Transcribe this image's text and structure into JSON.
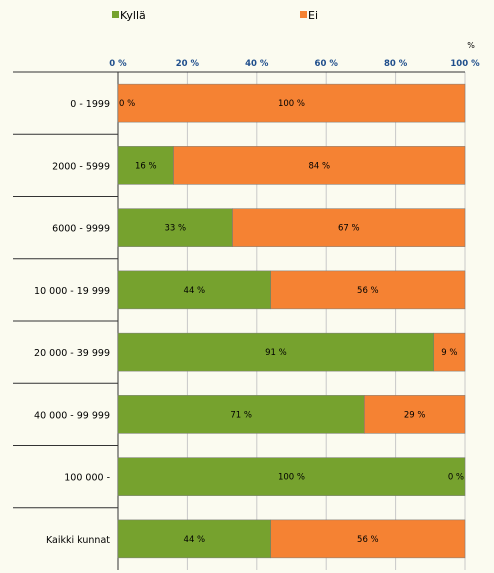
{
  "chart_data": {
    "type": "bar",
    "orientation": "horizontal",
    "stacked": true,
    "title": "",
    "xlabel": "",
    "ylabel": "",
    "unit_label": "%",
    "xlim": [
      0,
      100
    ],
    "x_ticks": [
      0,
      20,
      40,
      60,
      80,
      100
    ],
    "x_tick_labels": [
      "0 %",
      "20 %",
      "40 %",
      "60 %",
      "80 %",
      "100 %"
    ],
    "grid": true,
    "legend_position": "top",
    "categories": [
      "0 - 1999",
      "2000 - 5999",
      "6000 - 9999",
      "10 000 - 19 999",
      "20 000 - 39 999",
      "40 000 - 99 999",
      "100 000 -",
      "Kaikki kunnat"
    ],
    "series": [
      {
        "name": "Kyllä",
        "color": "#76a22e",
        "values": [
          0,
          16,
          33,
          44,
          91,
          71,
          100,
          44
        ],
        "labels": [
          "0 %",
          "16 %",
          "33 %",
          "44 %",
          "91 %",
          "71 %",
          "100 %",
          "44 %"
        ]
      },
      {
        "name": "Ei",
        "color": "#f58233",
        "values": [
          100,
          84,
          67,
          56,
          9,
          29,
          0,
          56
        ],
        "labels": [
          "100 %",
          "84 %",
          "67 %",
          "56 %",
          "9 %",
          "29 %",
          "0 %",
          "56 %"
        ]
      }
    ]
  }
}
